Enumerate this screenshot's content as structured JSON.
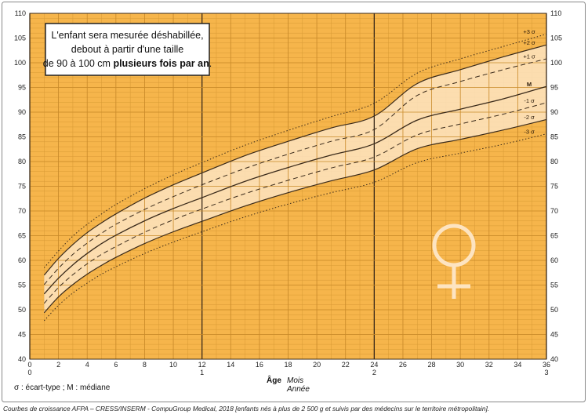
{
  "note": {
    "line1": "L'enfant sera mesurée déshabillée,",
    "line2": "debout à partir d'une taille",
    "line3_prefix": "de 90 à 100 cm ",
    "line3_bold": "plusieurs fois par an",
    "line3_suffix": "."
  },
  "legend_text": "σ : écart-type ; M : médiane",
  "axis": {
    "age_label": "Âge",
    "months_label": "Mois",
    "years_label": "Année"
  },
  "footer_text": "Courbes de croissance AFPA – CRESS/INSERM - CompuGroup Medical, 2018 [enfants nés à plus de 2 500 g et suivis par des médecins sur le territoire métropolitain].",
  "colors": {
    "background_orange": "#f6b54b",
    "band_fill": "#fde4c1",
    "grid_line": "#d89a35",
    "curve": "#3a2a1a",
    "symbol": "#fde4c1"
  },
  "symbol_icon": "female-symbol-icon",
  "chart_data": {
    "type": "line",
    "xlim": [
      0,
      36
    ],
    "ylim": [
      40,
      110
    ],
    "x_ticks": [
      0,
      2,
      4,
      6,
      8,
      10,
      12,
      14,
      16,
      18,
      20,
      22,
      24,
      26,
      28,
      30,
      32,
      34,
      36
    ],
    "y_ticks": [
      40,
      45,
      50,
      55,
      60,
      65,
      70,
      75,
      80,
      85,
      90,
      95,
      100,
      105,
      110
    ],
    "year_ticks": [
      {
        "month": 0,
        "label": "0"
      },
      {
        "month": 12,
        "label": "1"
      },
      {
        "month": 24,
        "label": "2"
      },
      {
        "month": 36,
        "label": "3"
      }
    ],
    "x": [
      1,
      2,
      3,
      4,
      5,
      6,
      8,
      10,
      12,
      15,
      18,
      21,
      24,
      27,
      30,
      33,
      36
    ],
    "series": [
      {
        "name": "+3 σ",
        "style": "dotted",
        "values": [
          58.5,
          61.9,
          64.9,
          67.3,
          69.4,
          71.3,
          74.5,
          77.3,
          79.8,
          83.3,
          86.3,
          89.1,
          91.8,
          97.9,
          100.8,
          103.3,
          105.8
        ]
      },
      {
        "name": "+2 σ",
        "style": "solid",
        "values": [
          57.0,
          60.4,
          63.2,
          65.6,
          67.6,
          69.4,
          72.6,
          75.3,
          77.7,
          81.2,
          84.1,
          86.8,
          89.2,
          95.8,
          98.6,
          101.2,
          103.6
        ]
      },
      {
        "name": "+1 σ",
        "style": "dashed",
        "values": [
          55.1,
          58.4,
          61.2,
          63.5,
          65.5,
          67.3,
          70.3,
          72.9,
          75.3,
          78.6,
          81.5,
          84.1,
          86.5,
          93.4,
          96.2,
          98.6,
          100.8
        ]
      },
      {
        "name": "M",
        "style": "solid",
        "values": [
          53.2,
          56.4,
          59.1,
          61.4,
          63.4,
          65.1,
          68.0,
          70.5,
          72.7,
          76.0,
          78.8,
          81.3,
          83.6,
          88.4,
          90.6,
          92.7,
          95.2
        ]
      },
      {
        "name": "-1 σ",
        "style": "dashed",
        "values": [
          51.3,
          54.5,
          57.1,
          59.3,
          61.2,
          62.8,
          65.7,
          68.2,
          70.4,
          73.5,
          76.2,
          78.7,
          80.9,
          85.4,
          87.6,
          89.6,
          91.9
        ]
      },
      {
        "name": "-2 σ",
        "style": "solid",
        "values": [
          49.4,
          52.6,
          55.1,
          57.2,
          59.0,
          60.6,
          63.4,
          65.8,
          67.9,
          71.0,
          73.7,
          76.1,
          78.3,
          82.6,
          84.5,
          86.4,
          88.5
        ]
      },
      {
        "name": "-3 σ",
        "style": "dotted",
        "values": [
          47.8,
          50.9,
          53.4,
          55.4,
          57.2,
          58.7,
          61.4,
          63.7,
          65.8,
          68.8,
          71.4,
          73.7,
          75.8,
          79.8,
          81.7,
          83.5,
          85.6
        ]
      }
    ]
  }
}
